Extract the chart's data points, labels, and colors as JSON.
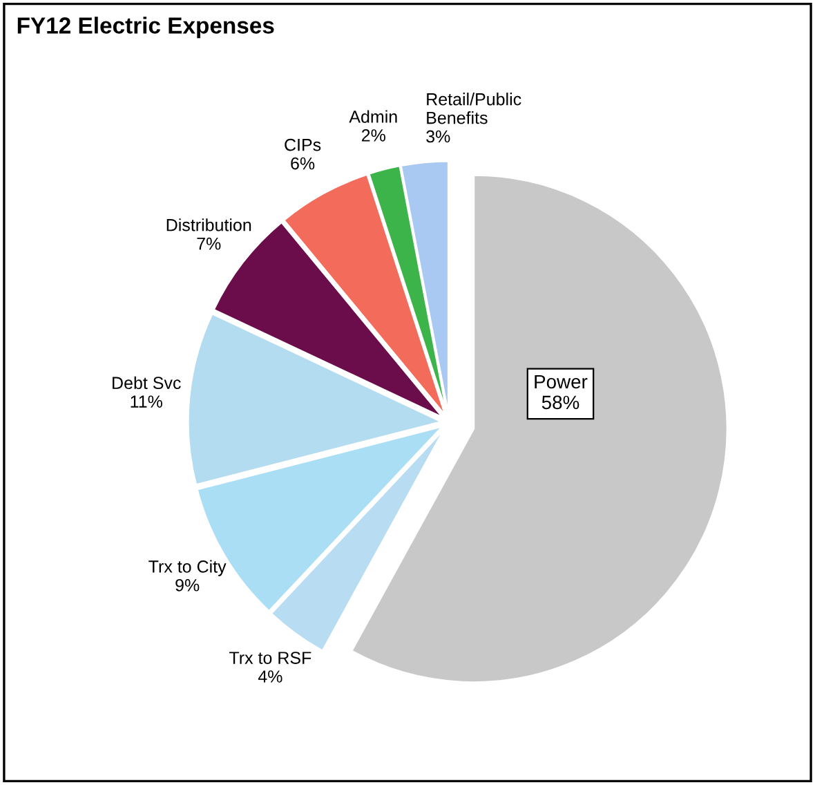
{
  "chart_data": {
    "type": "pie",
    "title": "FY12 Electric Expenses",
    "categories": [
      "Power",
      "Trx to RSF",
      "Trx to City",
      "Debt Svc",
      "Distribution",
      "CIPs",
      "Admin",
      "Retail/Public\nBenefits"
    ],
    "values": [
      58,
      4,
      9,
      11,
      7,
      6,
      2,
      3
    ],
    "value_labels": [
      "58%",
      "4%",
      "9%",
      "11%",
      "7%",
      "6%",
      "2%",
      "3%"
    ],
    "colors": [
      "#c8c8c8",
      "#b8dcf2",
      "#a9def5",
      "#b3dcf0",
      "#6b0d4a",
      "#f26b5b",
      "#3cb44a",
      "#a9c8f2"
    ]
  }
}
